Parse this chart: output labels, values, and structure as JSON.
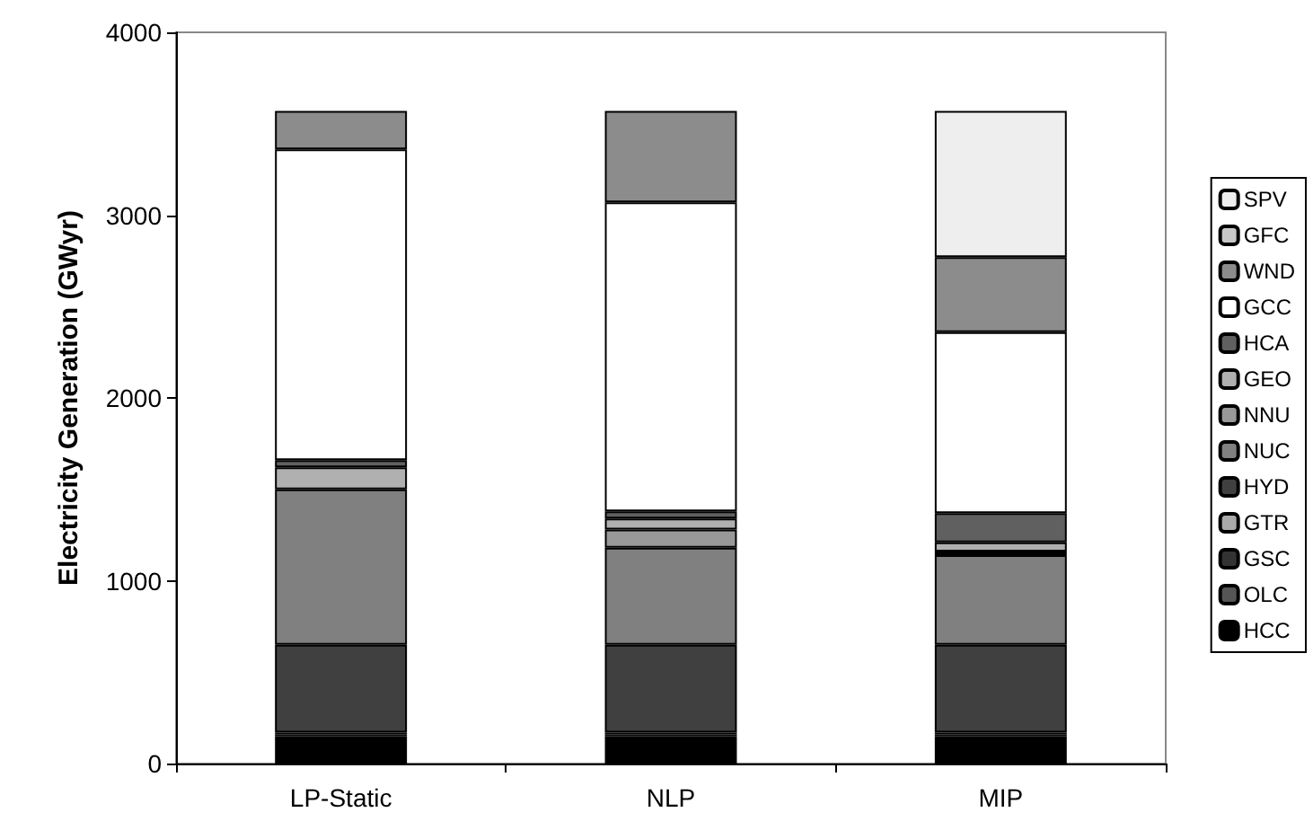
{
  "chart_data": {
    "type": "bar",
    "stacked": true,
    "ylabel": "Electricity Generation (GWyr)",
    "categories": [
      "LP-Static",
      "NLP",
      "MIP"
    ],
    "ylim": [
      0,
      4000
    ],
    "yticks": [
      0,
      1000,
      2000,
      3000,
      4000
    ],
    "grid": false,
    "legend": "right",
    "series": [
      {
        "name": "HCC",
        "color": "#000000",
        "values": [
          150,
          150,
          150
        ]
      },
      {
        "name": "OLC",
        "color": "#555555",
        "values": [
          10,
          10,
          10
        ]
      },
      {
        "name": "GSC",
        "color": "#333333",
        "values": [
          10,
          10,
          10
        ]
      },
      {
        "name": "GTR",
        "color": "#aaaaaa",
        "values": [
          0,
          0,
          0
        ]
      },
      {
        "name": "HYD",
        "color": "#404040",
        "values": [
          480,
          480,
          480
        ]
      },
      {
        "name": "NUC",
        "color": "#808080",
        "values": [
          850,
          530,
          490
        ]
      },
      {
        "name": "NNU",
        "color": "#999999",
        "values": [
          0,
          100,
          20
        ]
      },
      {
        "name": "GEO",
        "color": "#b0b0b0",
        "values": [
          120,
          60,
          50
        ]
      },
      {
        "name": "HCA",
        "color": "#606060",
        "values": [
          40,
          40,
          160
        ]
      },
      {
        "name": "GCC",
        "color": "#ffffff",
        "values": [
          1700,
          1690,
          990
        ]
      },
      {
        "name": "WND",
        "color": "#8c8c8c",
        "values": [
          210,
          500,
          410
        ]
      },
      {
        "name": "GFC",
        "color": "#c8c8c8",
        "values": [
          0,
          0,
          0
        ]
      },
      {
        "name": "SPV",
        "color": "#eeeeee",
        "values": [
          0,
          0,
          800
        ]
      }
    ]
  }
}
